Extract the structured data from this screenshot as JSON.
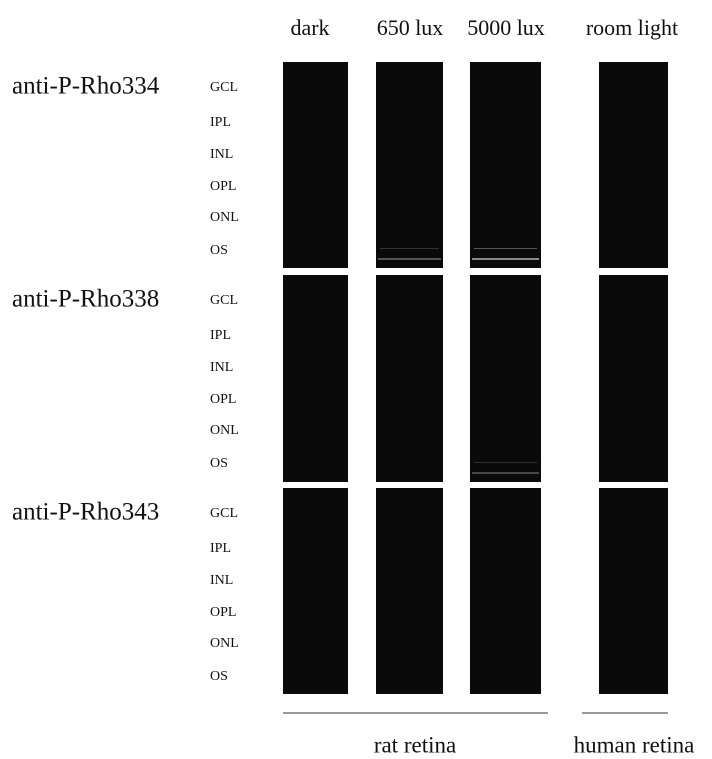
{
  "columns": [
    "dark",
    "650 lux",
    "5000 lux",
    "room light"
  ],
  "rows": [
    {
      "antibody": "anti-P-Rho334",
      "layers": [
        "GCL",
        "IPL",
        "INL",
        "OPL",
        "ONL",
        "OS"
      ]
    },
    {
      "antibody": "anti-P-Rho338",
      "layers": [
        "GCL",
        "IPL",
        "INL",
        "OPL",
        "ONL",
        "OS"
      ]
    },
    {
      "antibody": "anti-P-Rho343",
      "layers": [
        "GCL",
        "IPL",
        "INL",
        "OPL",
        "ONL",
        "OS"
      ]
    }
  ],
  "groups": [
    "rat retina",
    "human retina"
  ]
}
